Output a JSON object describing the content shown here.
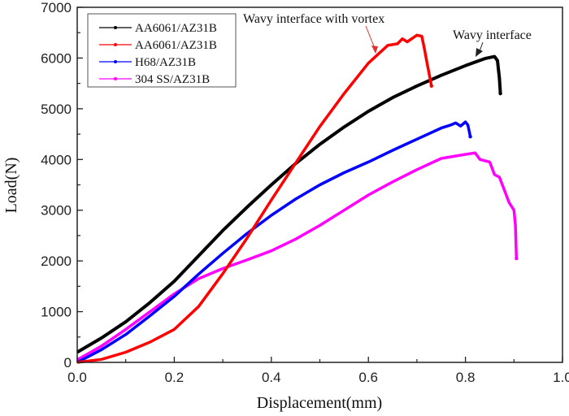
{
  "chart_data": {
    "type": "line",
    "xlabel": "Displacement(mm)",
    "ylabel": "Load(N)",
    "xlim": [
      0,
      1.0
    ],
    "ylim": [
      0,
      7000
    ],
    "xticks": [
      "0.0",
      "0.2",
      "0.4",
      "0.6",
      "0.8",
      "1.0"
    ],
    "yticks": [
      "0",
      "1000",
      "2000",
      "3000",
      "4000",
      "5000",
      "6000",
      "7000"
    ],
    "legend_position": "top-left",
    "series": [
      {
        "name": "AA6061/AZ31B",
        "color": "#000000",
        "points": [
          [
            0,
            200
          ],
          [
            0.05,
            480
          ],
          [
            0.1,
            800
          ],
          [
            0.15,
            1180
          ],
          [
            0.2,
            1600
          ],
          [
            0.25,
            2100
          ],
          [
            0.3,
            2600
          ],
          [
            0.35,
            3060
          ],
          [
            0.4,
            3500
          ],
          [
            0.45,
            3920
          ],
          [
            0.5,
            4300
          ],
          [
            0.55,
            4640
          ],
          [
            0.6,
            4950
          ],
          [
            0.65,
            5220
          ],
          [
            0.7,
            5450
          ],
          [
            0.75,
            5660
          ],
          [
            0.8,
            5850
          ],
          [
            0.84,
            5990
          ],
          [
            0.86,
            6030
          ],
          [
            0.866,
            5950
          ],
          [
            0.87,
            5600
          ],
          [
            0.872,
            5300
          ]
        ]
      },
      {
        "name": "AA6061/AZ31B",
        "color": "#ff0000",
        "points": [
          [
            0,
            0
          ],
          [
            0.05,
            60
          ],
          [
            0.1,
            200
          ],
          [
            0.15,
            400
          ],
          [
            0.2,
            650
          ],
          [
            0.25,
            1100
          ],
          [
            0.3,
            1750
          ],
          [
            0.35,
            2450
          ],
          [
            0.4,
            3200
          ],
          [
            0.45,
            3930
          ],
          [
            0.5,
            4650
          ],
          [
            0.55,
            5300
          ],
          [
            0.6,
            5900
          ],
          [
            0.64,
            6250
          ],
          [
            0.66,
            6280
          ],
          [
            0.67,
            6380
          ],
          [
            0.68,
            6320
          ],
          [
            0.7,
            6450
          ],
          [
            0.71,
            6430
          ],
          [
            0.715,
            6200
          ],
          [
            0.72,
            5950
          ],
          [
            0.725,
            5700
          ],
          [
            0.73,
            5450
          ]
        ]
      },
      {
        "name": "H68/AZ31B",
        "color": "#0000ff",
        "points": [
          [
            0,
            0
          ],
          [
            0.05,
            250
          ],
          [
            0.1,
            550
          ],
          [
            0.15,
            920
          ],
          [
            0.2,
            1300
          ],
          [
            0.25,
            1740
          ],
          [
            0.3,
            2150
          ],
          [
            0.35,
            2540
          ],
          [
            0.4,
            2900
          ],
          [
            0.45,
            3220
          ],
          [
            0.5,
            3500
          ],
          [
            0.55,
            3740
          ],
          [
            0.6,
            3950
          ],
          [
            0.65,
            4180
          ],
          [
            0.7,
            4400
          ],
          [
            0.75,
            4620
          ],
          [
            0.77,
            4680
          ],
          [
            0.78,
            4720
          ],
          [
            0.79,
            4660
          ],
          [
            0.8,
            4740
          ],
          [
            0.805,
            4680
          ],
          [
            0.81,
            4450
          ]
        ]
      },
      {
        "name": "304 SS/AZ31B",
        "color": "#ff00ff",
        "points": [
          [
            0,
            50
          ],
          [
            0.05,
            320
          ],
          [
            0.1,
            650
          ],
          [
            0.15,
            1000
          ],
          [
            0.2,
            1350
          ],
          [
            0.25,
            1650
          ],
          [
            0.3,
            1850
          ],
          [
            0.35,
            2020
          ],
          [
            0.4,
            2200
          ],
          [
            0.45,
            2430
          ],
          [
            0.5,
            2700
          ],
          [
            0.55,
            3000
          ],
          [
            0.6,
            3300
          ],
          [
            0.65,
            3560
          ],
          [
            0.7,
            3800
          ],
          [
            0.75,
            4020
          ],
          [
            0.8,
            4100
          ],
          [
            0.82,
            4130
          ],
          [
            0.83,
            4000
          ],
          [
            0.85,
            3950
          ],
          [
            0.86,
            3700
          ],
          [
            0.87,
            3650
          ],
          [
            0.88,
            3400
          ],
          [
            0.89,
            3150
          ],
          [
            0.9,
            3000
          ],
          [
            0.903,
            2700
          ],
          [
            0.905,
            2050
          ]
        ]
      }
    ],
    "annotations": [
      {
        "text": "Wavy interface with vortex",
        "points_to": [
          0.63,
          6100
        ]
      },
      {
        "text": "Wavy interface",
        "points_to": [
          0.84,
          6000
        ]
      }
    ]
  }
}
